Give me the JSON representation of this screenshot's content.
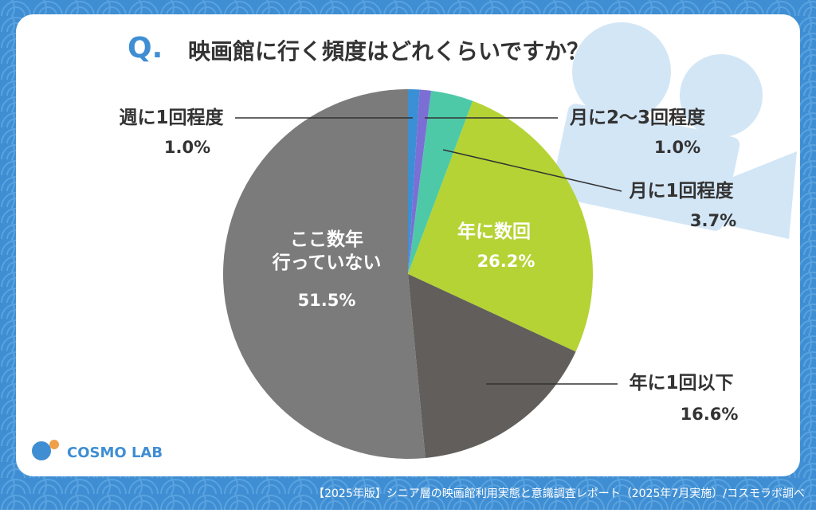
{
  "chart_data": {
    "type": "pie",
    "title": "映画館に行く頻度はどれくらいですか？",
    "title_prefix": "Q.",
    "categories": [
      "週に1回程度",
      "月に2〜3回程度",
      "月に1回程度",
      "年に数回",
      "年に1回以下",
      "ここ数年\n行っていない"
    ],
    "values": [
      1.0,
      1.0,
      3.7,
      26.2,
      16.6,
      51.5
    ],
    "value_labels": [
      "1.0%",
      "1.0%",
      "3.7%",
      "26.2%",
      "16.6%",
      "51.5%"
    ],
    "colors": [
      "#3b8fd4",
      "#7b6fd6",
      "#4dc9a8",
      "#b5d334",
      "#615e5c",
      "#7b7b7b"
    ]
  },
  "logo": "COSMO LAB",
  "footer": "【2025年版】シニア層の映画館利用実態と意識調査レポート（2025年7月実施）/コスモラボ調べ"
}
